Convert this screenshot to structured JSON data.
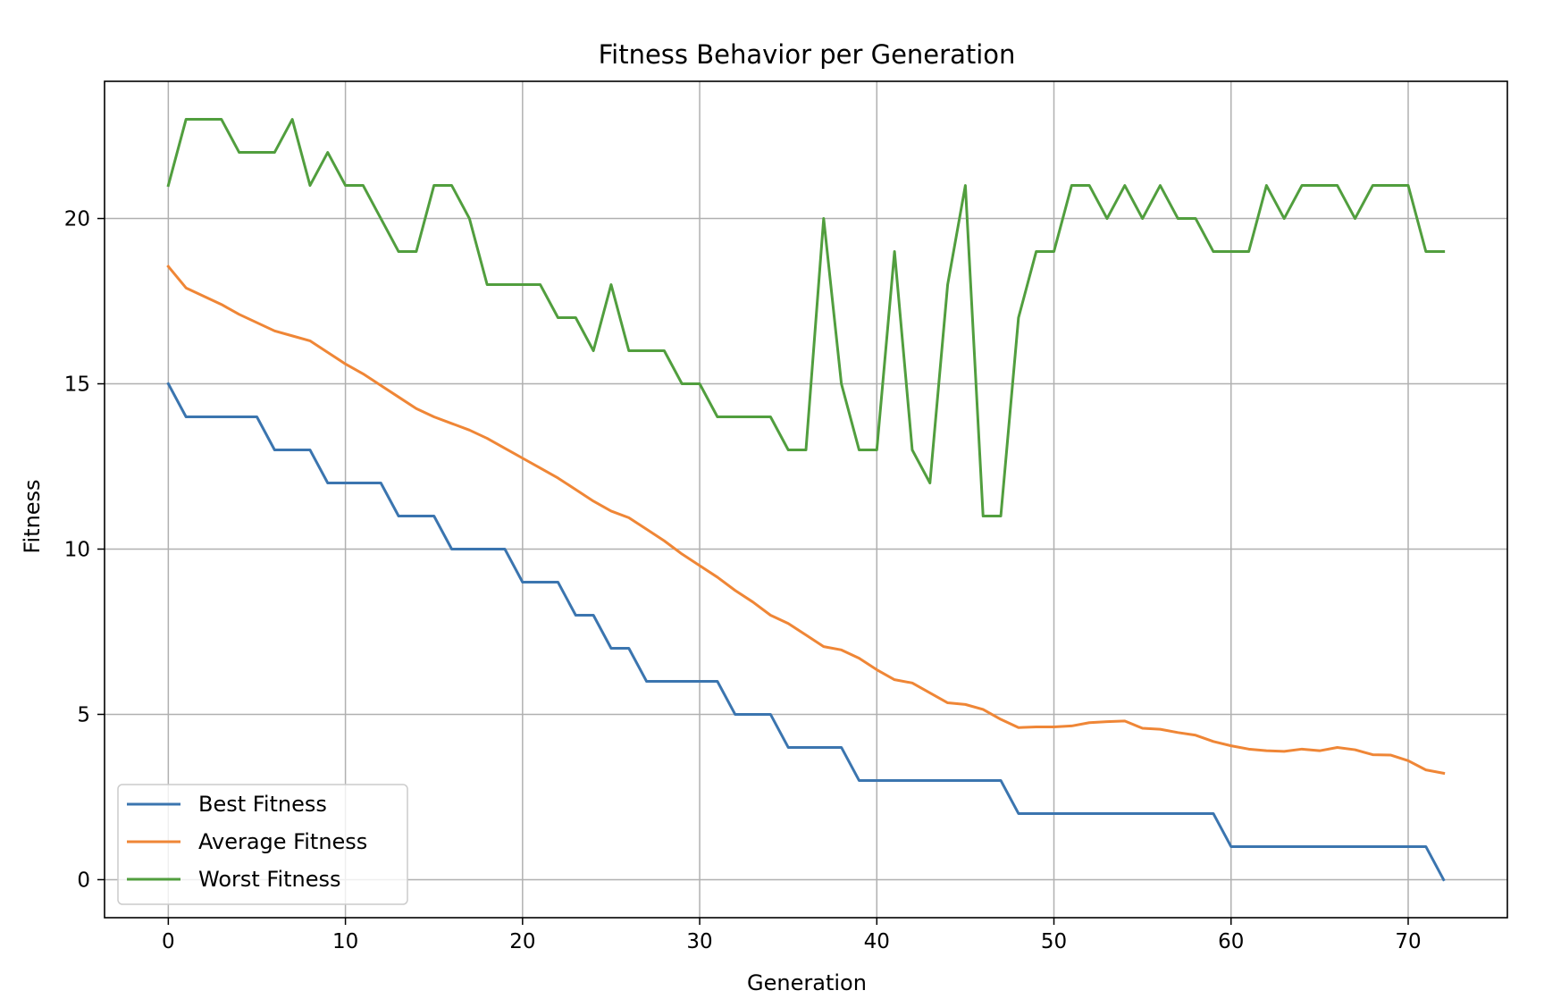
{
  "chart_data": {
    "type": "line",
    "title": "Fitness Behavior per Generation",
    "xlabel": "Generation",
    "ylabel": "Fitness",
    "xlim": [
      -3.6,
      75.6
    ],
    "ylim": [
      -1.15,
      24.15
    ],
    "xticks": [
      0,
      10,
      20,
      30,
      40,
      50,
      60,
      70
    ],
    "yticks": [
      0,
      5,
      10,
      15,
      20
    ],
    "grid": true,
    "legend_position": "lower-left",
    "x": [
      0,
      1,
      2,
      3,
      4,
      5,
      6,
      7,
      8,
      9,
      10,
      11,
      12,
      13,
      14,
      15,
      16,
      17,
      18,
      19,
      20,
      21,
      22,
      23,
      24,
      25,
      26,
      27,
      28,
      29,
      30,
      31,
      32,
      33,
      34,
      35,
      36,
      37,
      38,
      39,
      40,
      41,
      42,
      43,
      44,
      45,
      46,
      47,
      48,
      49,
      50,
      51,
      52,
      53,
      54,
      55,
      56,
      57,
      58,
      59,
      60,
      61,
      62,
      63,
      64,
      65,
      66,
      67,
      68,
      69,
      70,
      71,
      72
    ],
    "series": [
      {
        "name": "Best Fitness",
        "color": "#3b75af",
        "values": [
          15,
          14,
          14,
          14,
          14,
          14,
          13,
          13,
          13,
          12,
          12,
          12,
          12,
          11,
          11,
          11,
          10,
          10,
          10,
          10,
          9,
          9,
          9,
          8,
          8,
          7,
          7,
          6,
          6,
          6,
          6,
          6,
          5,
          5,
          5,
          4,
          4,
          4,
          4,
          3,
          3,
          3,
          3,
          3,
          3,
          3,
          3,
          3,
          2,
          2,
          2,
          2,
          2,
          2,
          2,
          2,
          2,
          2,
          2,
          2,
          1,
          1,
          1,
          1,
          1,
          1,
          1,
          1,
          1,
          1,
          1,
          1,
          0
        ]
      },
      {
        "name": "Average Fitness",
        "color": "#ef8636",
        "values": [
          18.55,
          17.9,
          17.65,
          17.4,
          17.1,
          16.85,
          16.6,
          16.45,
          16.3,
          15.95,
          15.6,
          15.3,
          14.95,
          14.6,
          14.25,
          14.0,
          13.8,
          13.6,
          13.35,
          13.05,
          12.75,
          12.45,
          12.15,
          11.8,
          11.45,
          11.15,
          10.95,
          10.6,
          10.25,
          9.85,
          9.5,
          9.15,
          8.75,
          8.4,
          8.0,
          7.75,
          7.4,
          7.05,
          6.95,
          6.7,
          6.35,
          6.05,
          5.95,
          5.65,
          5.35,
          5.3,
          5.15,
          4.85,
          4.6,
          4.62,
          4.62,
          4.65,
          4.75,
          4.78,
          4.8,
          4.58,
          4.55,
          4.45,
          4.37,
          4.18,
          4.05,
          3.95,
          3.9,
          3.88,
          3.95,
          3.9,
          4.0,
          3.93,
          3.78,
          3.77,
          3.6,
          3.32,
          3.22
        ]
      },
      {
        "name": "Worst Fitness",
        "color": "#519e3e",
        "values": [
          21,
          23,
          23,
          23,
          22,
          22,
          22,
          23,
          21,
          22,
          21,
          21,
          20,
          19,
          19,
          21,
          21,
          20,
          18,
          18,
          18,
          18,
          17,
          17,
          16,
          18,
          16,
          16,
          16,
          15,
          15,
          14,
          14,
          14,
          14,
          13,
          13,
          20,
          15,
          13,
          13,
          19,
          13,
          12,
          18,
          21,
          11,
          11,
          17,
          19,
          19,
          21,
          21,
          20,
          21,
          20,
          21,
          20,
          20,
          19,
          19,
          19,
          21,
          20,
          21,
          21,
          21,
          20,
          21,
          21,
          21,
          19,
          19
        ]
      }
    ]
  }
}
